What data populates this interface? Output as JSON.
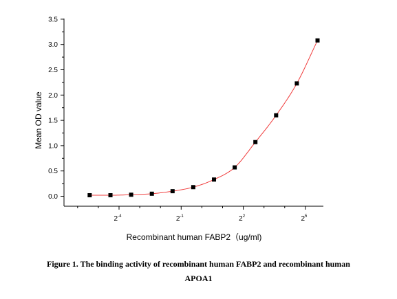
{
  "caption": {
    "line1": "Figure 1. The binding activity of recombinant human FABP2 and recombinant human",
    "line2": "APOA1"
  },
  "chart_data": {
    "type": "scatter",
    "title": "",
    "xlabel": "Recombinant human FABP2（ug/ml)",
    "ylabel": "Mean OD value",
    "xscale": "log2",
    "xlim": [
      0.0195,
      88
    ],
    "ylim": [
      -0.1,
      3.5
    ],
    "y_ticks": [
      {
        "value": 0.0,
        "label": "0.0"
      },
      {
        "value": 0.5,
        "label": "0.5"
      },
      {
        "value": 1.0,
        "label": "1.0"
      },
      {
        "value": 1.5,
        "label": "1.5"
      },
      {
        "value": 2.0,
        "label": "2.0"
      },
      {
        "value": 2.5,
        "label": "2.5"
      },
      {
        "value": 3.0,
        "label": "3.0"
      },
      {
        "value": 3.5,
        "label": "3.5"
      }
    ],
    "x_ticks": [
      {
        "value": 0.0625,
        "base": "2",
        "exp": "-4"
      },
      {
        "value": 0.5,
        "base": "2",
        "exp": "-1"
      },
      {
        "value": 4,
        "base": "2",
        "exp": "2"
      },
      {
        "value": 32,
        "base": "2",
        "exp": "5"
      }
    ],
    "x": [
      0.0234,
      0.0469,
      0.0938,
      0.1875,
      0.375,
      0.75,
      1.5,
      3,
      6,
      12,
      24,
      48
    ],
    "y": [
      0.02,
      0.02,
      0.03,
      0.05,
      0.1,
      0.18,
      0.33,
      0.57,
      1.07,
      1.6,
      2.23,
      3.08
    ],
    "marker_color": "#000000",
    "curve_color": "#f03c3c",
    "fit_curve": true,
    "grid": false,
    "legend": "none"
  }
}
